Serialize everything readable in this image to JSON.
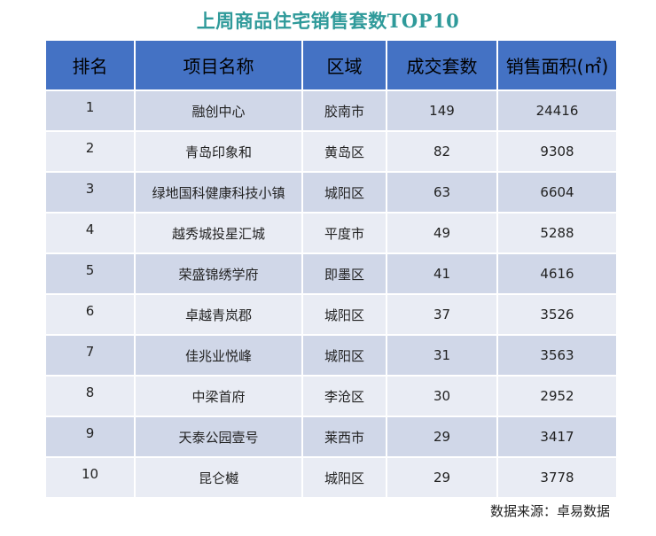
{
  "title": "上周商品住宅销售套数TOP10",
  "table": {
    "headers": [
      "排名",
      "项目名称",
      "区域",
      "成交套数",
      "销售面积(㎡)"
    ],
    "rows": [
      [
        "1",
        "融创中心",
        "胶南市",
        "149",
        "24416"
      ],
      [
        "2",
        "青岛印象和",
        "黄岛区",
        "82",
        "9308"
      ],
      [
        "3",
        "绿地国科健康科技小镇",
        "城阳区",
        "63",
        "6604"
      ],
      [
        "4",
        "越秀城投星汇城",
        "平度市",
        "49",
        "5288"
      ],
      [
        "5",
        "荣盛锦绣学府",
        "即墨区",
        "41",
        "4616"
      ],
      [
        "6",
        "卓越青岚郡",
        "城阳区",
        "37",
        "3526"
      ],
      [
        "7",
        "佳兆业悦峰",
        "城阳区",
        "31",
        "3563"
      ],
      [
        "8",
        "中梁首府",
        "李沧区",
        "30",
        "2952"
      ],
      [
        "9",
        "天泰公园壹号",
        "莱西市",
        "29",
        "3417"
      ],
      [
        "10",
        "昆仑樾",
        "城阳区",
        "29",
        "3778"
      ]
    ]
  },
  "source": "数据来源：卓易数据",
  "colors": {
    "title": "#2f9a9a",
    "header_bg": "#4472c4",
    "row_odd_bg": "#d0d7e8",
    "row_even_bg": "#e9ecf4"
  }
}
